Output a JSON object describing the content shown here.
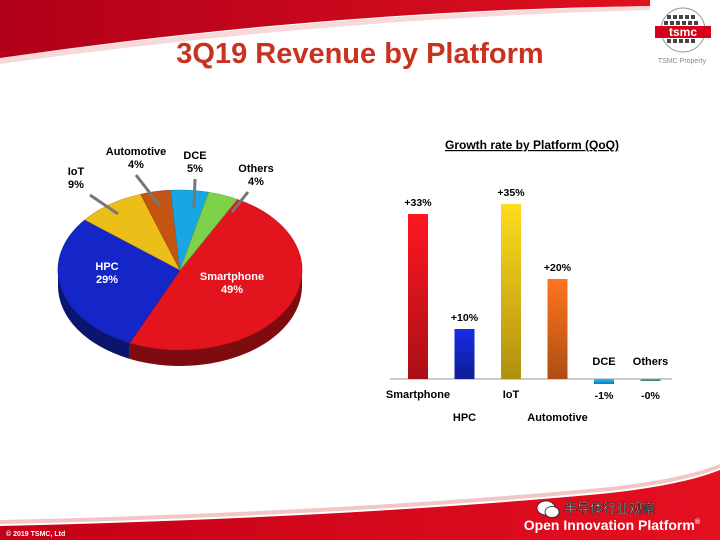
{
  "slide": {
    "title": "3Q19 Revenue by Platform",
    "logo_label": "TSMC Property",
    "logo_text": "tsmc",
    "footer_copyright": "© 2019 TSMC, Ltd",
    "footer_platform": "Open Innovation Platform",
    "footer_platform_mark": "®",
    "watermark_text": "半导体行业观察"
  },
  "colors": {
    "brand_red": "#d7001a",
    "title_red": "#c8321e",
    "smartphone": "#e3141d",
    "hpc": "#1426c8",
    "iot": "#ebbf18",
    "automotive": "#c55412",
    "dce": "#1aa6e2",
    "others": "#7ed14a"
  },
  "chart_data": [
    {
      "type": "pie",
      "title": "",
      "slices": [
        {
          "label": "Smartphone",
          "value": 49,
          "value_label": "49%",
          "color": "#e3141d"
        },
        {
          "label": "HPC",
          "value": 29,
          "value_label": "29%",
          "color": "#1426c8"
        },
        {
          "label": "IoT",
          "value": 9,
          "value_label": "9%",
          "color": "#ebbf18"
        },
        {
          "label": "Automotive",
          "value": 4,
          "value_label": "4%",
          "color": "#c55412"
        },
        {
          "label": "DCE",
          "value": 5,
          "value_label": "5%",
          "color": "#1aa6e2"
        },
        {
          "label": "Others",
          "value": 4,
          "value_label": "4%",
          "color": "#7ed14a"
        }
      ]
    },
    {
      "type": "bar",
      "title": "Growth rate by Platform (QoQ)",
      "xlabel": "",
      "ylabel": "",
      "categories": [
        "Smartphone",
        "HPC",
        "IoT",
        "Automotive",
        "DCE",
        "Others"
      ],
      "values": [
        33,
        10,
        35,
        20,
        -1,
        -0.3
      ],
      "value_labels": [
        "+33%",
        "+10%",
        "+35%",
        "+20%",
        "-1%",
        "-0%"
      ],
      "colors": [
        "#e3141d",
        "#1426c8",
        "#ebbf18",
        "#e8661a",
        "#1aa6e2",
        "#4aa07a"
      ],
      "ylim": [
        -4,
        40
      ],
      "grid": false
    }
  ]
}
